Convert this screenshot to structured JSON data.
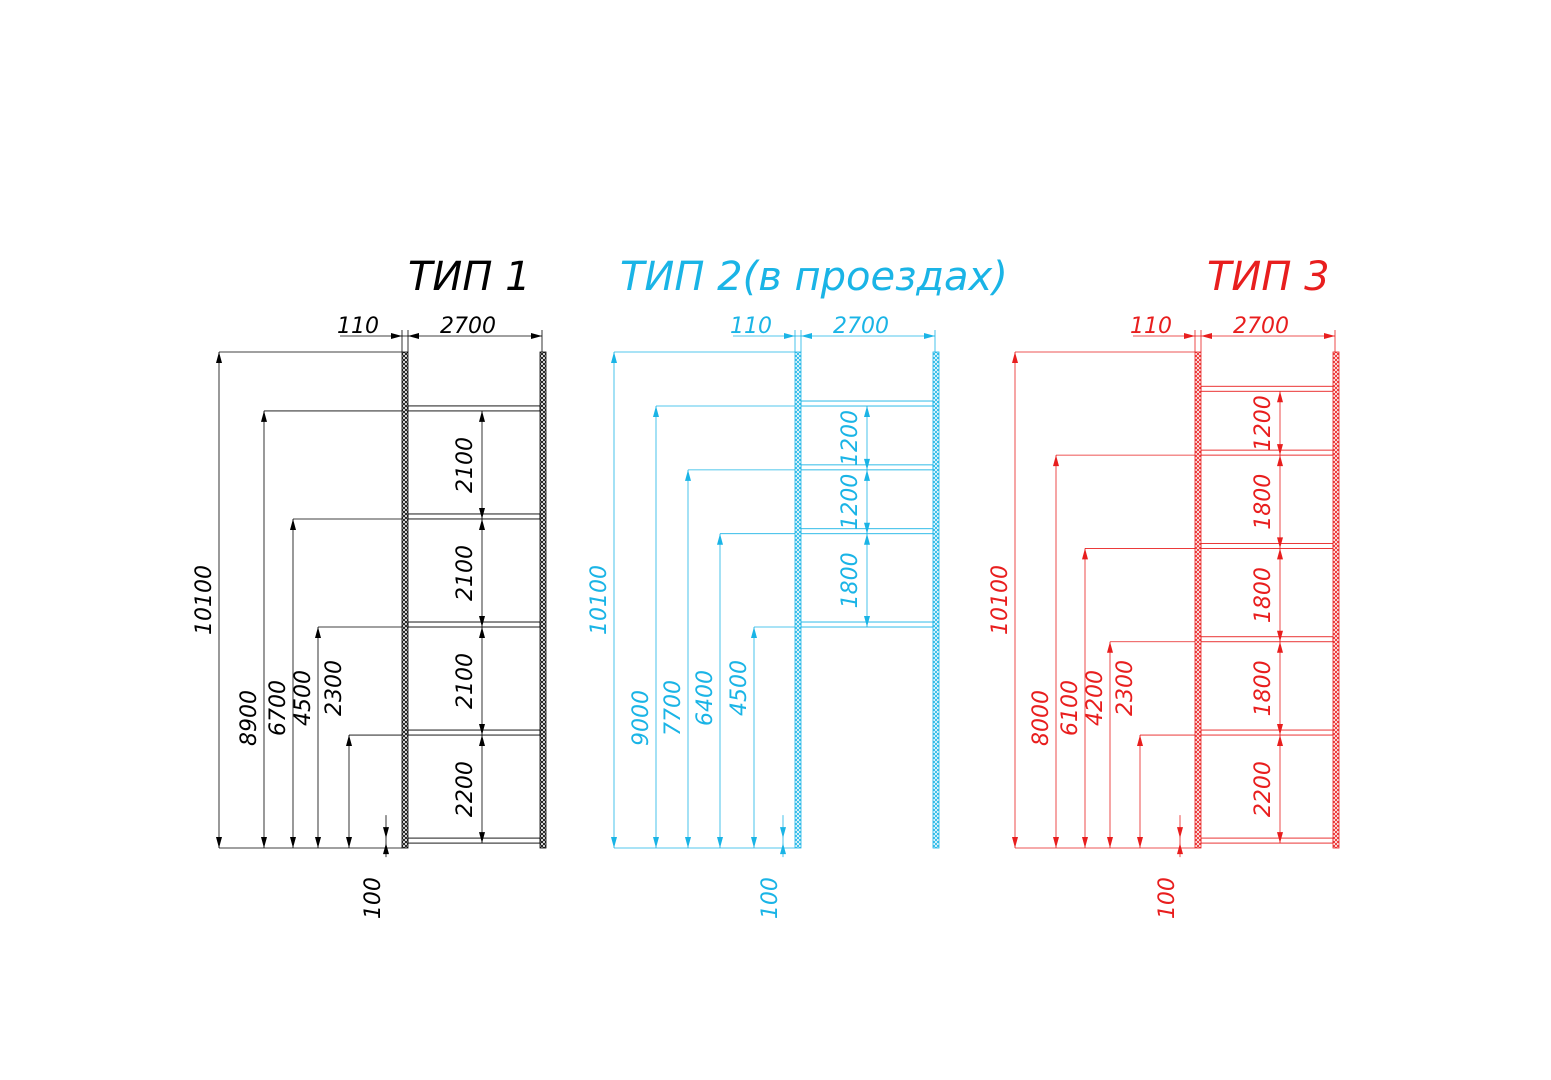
{
  "panels": [
    {
      "id": "type1",
      "title": "ТИП 1",
      "color": "#000000",
      "top_dims": [
        "110",
        "2700"
      ],
      "total_height": 10100,
      "beam_levels": [
        100,
        2300,
        4500,
        6700,
        8900
      ],
      "left_dims": [
        "10100",
        "8900",
        "6700",
        "4500",
        "2300",
        "100"
      ],
      "bay_labels": [
        "2100",
        "2100",
        "2100",
        "2200"
      ]
    },
    {
      "id": "type2",
      "title": "ТИП 2(в проездах)",
      "color": "#1ab4e6",
      "top_dims": [
        "110",
        "2700"
      ],
      "total_height": 10100,
      "beam_levels": [
        4500,
        6400,
        7700,
        9000
      ],
      "left_dims": [
        "10100",
        "9000",
        "7700",
        "6400",
        "4500",
        "100"
      ],
      "bay_labels": [
        "1200",
        "1200",
        "1800"
      ]
    },
    {
      "id": "type3",
      "title": "ТИП 3",
      "color": "#e81e1e",
      "top_dims": [
        "110",
        "2700"
      ],
      "total_height": 10100,
      "beam_levels": [
        100,
        2300,
        4200,
        6100,
        8000,
        9300
      ],
      "left_dims": [
        "10100",
        "8000",
        "6100",
        "4200",
        "2300",
        "100"
      ],
      "bay_labels": [
        "1200",
        "1800",
        "1800",
        "1800",
        "2200"
      ]
    }
  ]
}
